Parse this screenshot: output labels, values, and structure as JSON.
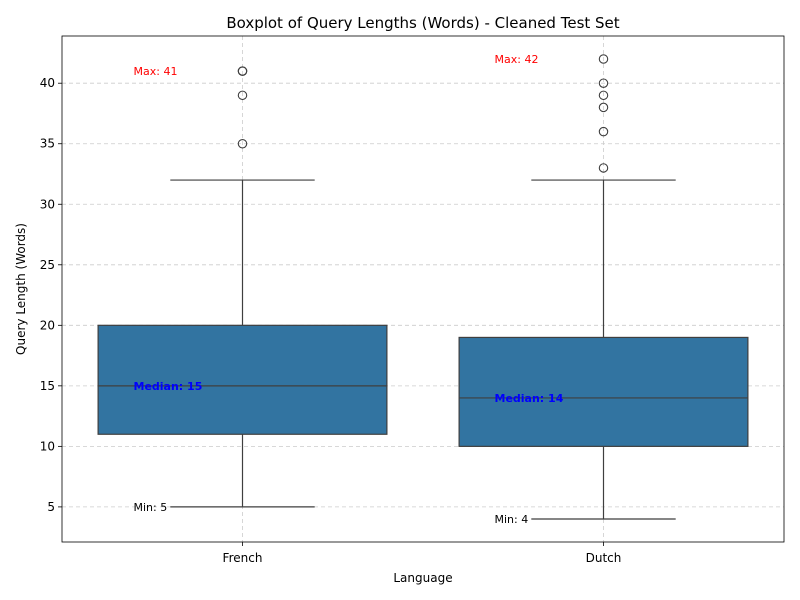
{
  "chart_data": {
    "type": "box",
    "title": "Boxplot of Query Lengths (Words) - Cleaned Test Set",
    "xlabel": "Language",
    "ylabel": "Query Length (Words)",
    "ylim": [
      2.1,
      43.9
    ],
    "yticks": [
      5,
      10,
      15,
      20,
      25,
      30,
      35,
      40
    ],
    "grid": true,
    "box_color": "#3274a1",
    "categories": [
      "French",
      "Dutch"
    ],
    "boxes": [
      {
        "category": "French",
        "whisker_low": 5,
        "q1": 11,
        "median": 15,
        "q3": 20,
        "whisker_high": 32,
        "outliers": [
          35,
          39,
          41,
          41
        ]
      },
      {
        "category": "Dutch",
        "whisker_low": 4,
        "q1": 10,
        "median": 14,
        "q3": 19,
        "whisker_high": 32,
        "outliers": [
          33,
          36,
          38,
          39,
          40,
          42
        ]
      }
    ],
    "annotations": [
      {
        "category": "French",
        "label": "Max: 41",
        "value": 41,
        "color": "#ff0000",
        "bold": false
      },
      {
        "category": "French",
        "label": "Median: 15",
        "value": 15,
        "color": "#0000ff",
        "bold": true
      },
      {
        "category": "French",
        "label": "Min: 5",
        "value": 5,
        "color": "#000000",
        "bold": false
      },
      {
        "category": "Dutch",
        "label": "Max: 42",
        "value": 42,
        "color": "#ff0000",
        "bold": false
      },
      {
        "category": "Dutch",
        "label": "Median: 14",
        "value": 14,
        "color": "#0000ff",
        "bold": true
      },
      {
        "category": "Dutch",
        "label": "Min: 4",
        "value": 4,
        "color": "#000000",
        "bold": false
      }
    ]
  }
}
